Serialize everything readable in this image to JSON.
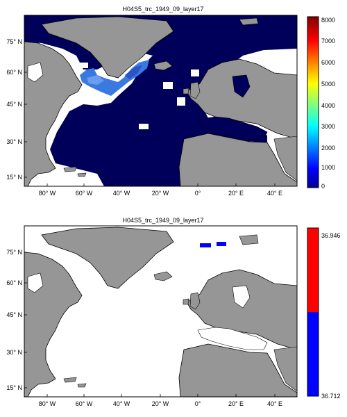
{
  "panels": [
    {
      "title": "H04S5_trc_1949_09_layer17",
      "y_ticks": [
        "75° N",
        "60° N",
        "45° N",
        "30° N",
        "15° N"
      ],
      "x_ticks": [
        "80° W",
        "60° W",
        "40° W",
        "20° W",
        "0°",
        "20° E",
        "40° E"
      ],
      "colorbar_ticks": [
        "8000",
        "7000",
        "6000",
        "5000",
        "4000",
        "3000",
        "2000",
        "1000",
        "0"
      ],
      "colorbar_type": "jet",
      "colorbar_range": [
        0,
        8000
      ]
    },
    {
      "title": "H04S5_trc_1949_09_layer17",
      "y_ticks": [
        "75° N",
        "60° N",
        "45° N",
        "30° N",
        "15° N"
      ],
      "x_ticks": [
        "80° W",
        "60° W",
        "40° W",
        "20° W",
        "0°",
        "20° E",
        "40° E"
      ],
      "colorbar_ticks": [
        "36.946",
        "36.712"
      ],
      "colorbar_type": "two-class",
      "colorbar_colors": [
        "#ff0000",
        "#0000ff"
      ]
    }
  ],
  "colors": {
    "land": "#969696",
    "ocean_field": "#00005a",
    "no_data": "#ffffff",
    "high_blue": "#3a7ae0",
    "class_blue": "#0000ff",
    "class_red": "#ff0000"
  }
}
